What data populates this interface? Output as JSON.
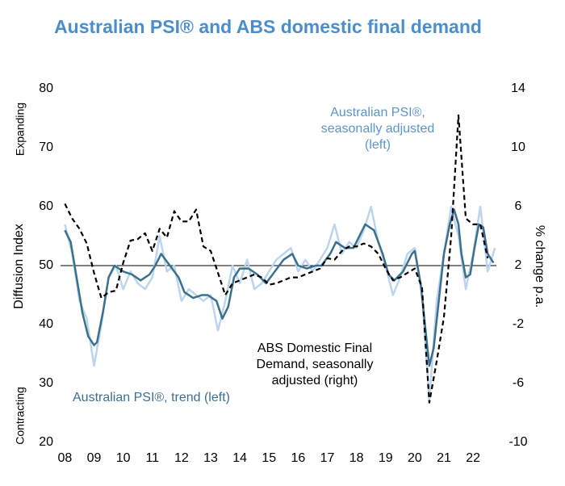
{
  "chart_data": {
    "type": "line",
    "title": "Australian PSI® and ABS domestic final demand",
    "ylabel": "Diffusion Index",
    "y2label": "% change p.a.",
    "y_top_note": "Expanding",
    "y_bottom_note": "Contracting",
    "xlim": [
      2007.85,
      2022.8
    ],
    "xticks": [
      {
        "value": 2008,
        "label": "08"
      },
      {
        "value": 2009,
        "label": "09"
      },
      {
        "value": 2010,
        "label": "10"
      },
      {
        "value": 2011,
        "label": "11"
      },
      {
        "value": 2012,
        "label": "12"
      },
      {
        "value": 2013,
        "label": "13"
      },
      {
        "value": 2014,
        "label": "14"
      },
      {
        "value": 2015,
        "label": "15"
      },
      {
        "value": 2016,
        "label": "16"
      },
      {
        "value": 2017,
        "label": "17"
      },
      {
        "value": 2018,
        "label": "18"
      },
      {
        "value": 2019,
        "label": "19"
      },
      {
        "value": 2020,
        "label": "20"
      },
      {
        "value": 2021,
        "label": "21"
      },
      {
        "value": 2022,
        "label": "22"
      }
    ],
    "ylim": [
      20,
      80
    ],
    "yticks": [
      20,
      30,
      40,
      50,
      60,
      70,
      80
    ],
    "y2lim": [
      -10,
      14
    ],
    "y2ticks": [
      -10,
      -6,
      -2,
      2,
      6,
      10,
      14
    ],
    "hline": 50,
    "series": [
      {
        "label": [
          "Australian PSI®,",
          "seasonally adjusted",
          "(left)"
        ],
        "color": "#bcd5ee",
        "axis": "y",
        "dash": false,
        "width": 2.5,
        "x": [
          2008,
          2008.25,
          2008.5,
          2008.75,
          2009,
          2009.25,
          2009.5,
          2009.75,
          2010,
          2010.25,
          2010.5,
          2010.75,
          2011,
          2011.25,
          2011.5,
          2011.75,
          2012,
          2012.25,
          2012.5,
          2012.75,
          2013,
          2013.25,
          2013.5,
          2013.75,
          2014,
          2014.25,
          2014.5,
          2014.75,
          2015,
          2015.25,
          2015.5,
          2015.75,
          2016,
          2016.25,
          2016.5,
          2016.75,
          2017,
          2017.25,
          2017.5,
          2017.75,
          2018,
          2018.25,
          2018.5,
          2018.75,
          2019,
          2019.25,
          2019.5,
          2019.75,
          2020,
          2020.25,
          2020.5,
          2020.75,
          2021,
          2021.25,
          2021.5,
          2021.75,
          2022,
          2022.25,
          2022.5,
          2022.75
        ],
        "values": [
          57,
          52,
          44,
          41,
          33,
          40,
          48,
          50,
          46,
          49,
          47,
          46,
          48,
          55,
          49,
          50,
          44,
          46,
          45,
          44,
          45,
          39,
          44,
          50,
          47,
          51,
          46,
          47,
          49,
          51,
          52,
          53,
          49,
          51,
          49,
          51,
          53,
          57,
          52,
          54,
          53,
          56,
          60,
          54,
          50,
          45,
          48,
          52,
          53,
          45,
          27,
          44,
          52,
          60,
          55,
          46,
          52,
          60,
          49,
          53
        ]
      },
      {
        "label": [
          "Australian PSI®, trend (left)"
        ],
        "color": "#3b6f8e",
        "axis": "y",
        "dash": false,
        "width": 2.5,
        "x": [
          2008,
          2008.2,
          2008.4,
          2008.6,
          2008.8,
          2009,
          2009.1,
          2009.3,
          2009.5,
          2009.7,
          2010,
          2010.3,
          2010.6,
          2010.9,
          2011.1,
          2011.3,
          2011.6,
          2011.9,
          2012.1,
          2012.4,
          2012.7,
          2012.9,
          2013.2,
          2013.4,
          2013.6,
          2013.8,
          2014,
          2014.3,
          2014.6,
          2014.9,
          2015.2,
          2015.5,
          2015.8,
          2016,
          2016.3,
          2016.6,
          2016.8,
          2017.1,
          2017.3,
          2017.6,
          2017.9,
          2018.1,
          2018.3,
          2018.6,
          2018.9,
          2019.1,
          2019.3,
          2019.6,
          2019.9,
          2020,
          2020.2,
          2020.35,
          2020.5,
          2020.65,
          2020.8,
          2021,
          2021.2,
          2021.35,
          2021.5,
          2021.6,
          2021.75,
          2021.9,
          2022.05,
          2022.2,
          2022.35,
          2022.5,
          2022.7
        ],
        "values": [
          56,
          54,
          48,
          42,
          38,
          36.5,
          37,
          42,
          48,
          50,
          49,
          48.5,
          47.5,
          48.5,
          50,
          52,
          50,
          48,
          45.5,
          44.5,
          45,
          45,
          44,
          41,
          43,
          48,
          49.5,
          49.5,
          48.5,
          47,
          49,
          51,
          52,
          50,
          49.5,
          50,
          50,
          52,
          54,
          53,
          53,
          55,
          57,
          56,
          52,
          48.5,
          47.5,
          49,
          52,
          52.5,
          47,
          40,
          33,
          36,
          43,
          52,
          57,
          59.5,
          57,
          52,
          48,
          48.5,
          53,
          57,
          56.5,
          52,
          50.5
        ]
      },
      {
        "label": [
          "ABS Domestic Final",
          "Demand, seasonally",
          "adjusted (right)"
        ],
        "color": "#000000",
        "axis": "y2",
        "dash": true,
        "width": 2.2,
        "x": [
          2008,
          2008.25,
          2008.5,
          2008.75,
          2009,
          2009.25,
          2009.5,
          2009.75,
          2010,
          2010.25,
          2010.5,
          2010.75,
          2011,
          2011.25,
          2011.5,
          2011.75,
          2012,
          2012.25,
          2012.5,
          2012.75,
          2013,
          2013.25,
          2013.5,
          2013.75,
          2014,
          2014.25,
          2014.5,
          2014.75,
          2015,
          2015.25,
          2015.5,
          2015.75,
          2016,
          2016.25,
          2016.5,
          2016.75,
          2017,
          2017.25,
          2017.5,
          2017.75,
          2018,
          2018.25,
          2018.5,
          2018.75,
          2019,
          2019.25,
          2019.5,
          2019.75,
          2020,
          2020.25,
          2020.5,
          2020.75,
          2021,
          2021.25,
          2021.5,
          2021.75,
          2022,
          2022.25,
          2022.5
        ],
        "values": [
          6.2,
          5.2,
          4.5,
          3.5,
          1.5,
          -0.2,
          0.2,
          0.3,
          2.2,
          3.7,
          3.8,
          4.2,
          3.0,
          4.5,
          3.9,
          5.7,
          5.0,
          5.0,
          5.8,
          3.3,
          3.0,
          1.5,
          0.0,
          0.8,
          1.0,
          1.2,
          1.4,
          1.2,
          0.7,
          0.8,
          1.0,
          1.2,
          1.2,
          1.4,
          1.6,
          1.8,
          2.5,
          2.4,
          3.0,
          3.3,
          3.3,
          3.5,
          3.3,
          2.8,
          1.8,
          1.0,
          1.2,
          1.5,
          1.8,
          0.5,
          -7.3,
          -4.5,
          -1.5,
          4.0,
          12.2,
          5.2,
          4.8,
          4.8,
          2.5
        ]
      }
    ]
  }
}
